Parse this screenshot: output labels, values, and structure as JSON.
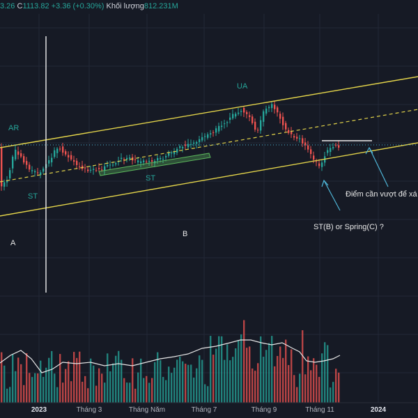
{
  "legend": {
    "close_partial": "3.26",
    "close_label": "C",
    "close_value": "1113.82",
    "change": "+3.36 (+0.30%)",
    "volume_label": "Khối lượng",
    "volume_value": "812.231M"
  },
  "annotations": {
    "ar": "AR",
    "st_left": "ST",
    "st_mid": "ST",
    "ua": "UA",
    "phase_a": "A",
    "phase_b": "B",
    "breakout_note": "Điểm cần vượt để xá",
    "test_note": "ST(B) or Spring(C) ?"
  },
  "x_axis": {
    "ticks": [
      "2023",
      "Tháng 3",
      "Tháng Năm",
      "Tháng 7",
      "Tháng 9",
      "Tháng 11",
      "2024"
    ],
    "bold": [
      "2023",
      "2024"
    ]
  },
  "colors": {
    "background": "#161a25",
    "up": "#26a69a",
    "down": "#ef5350",
    "channel": "#e3d44a",
    "trendbox": "#5cb85c",
    "volume_ma": "#e8e8e8"
  },
  "chart_data": {
    "type": "candlestick",
    "title": "",
    "last_close": 1113.82,
    "approx_price_path": [
      {
        "date": "2022-12",
        "close": 1010
      },
      {
        "date": "2023-01",
        "close": 1090
      },
      {
        "date": "2023-02",
        "close": 1050
      },
      {
        "date": "2023-03",
        "close": 1030
      },
      {
        "date": "2023-04",
        "close": 1060
      },
      {
        "date": "2023-05",
        "close": 1070
      },
      {
        "date": "2023-06",
        "close": 1120
      },
      {
        "date": "2023-07",
        "close": 1180
      },
      {
        "date": "2023-08",
        "close": 1240
      },
      {
        "date": "2023-09",
        "close": 1250
      },
      {
        "date": "2023-10",
        "close": 1120
      },
      {
        "date": "2023-11",
        "close": 1050
      },
      {
        "date": "2023-12",
        "close": 1113.82
      }
    ],
    "series": [
      {
        "name": "Khối lượng",
        "last": "812.231M"
      }
    ]
  }
}
